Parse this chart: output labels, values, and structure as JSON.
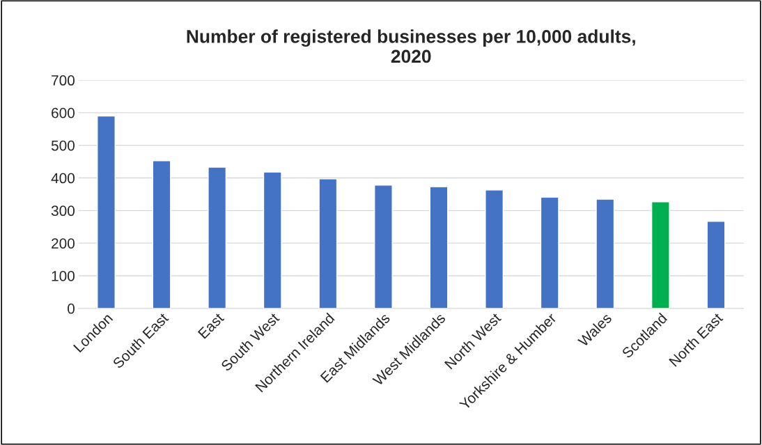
{
  "chart_data": {
    "type": "bar",
    "title": "Number of registered businesses per 10,000 adults,\n2020",
    "categories": [
      "London",
      "South East",
      "East",
      "South West",
      "Northern Ireland",
      "East Midlands",
      "West Midlands",
      "North West",
      "Yorkshire & Humber",
      "Wales",
      "Scotland",
      "North East"
    ],
    "values": [
      590,
      453,
      433,
      418,
      397,
      378,
      373,
      363,
      341,
      335,
      327,
      267
    ],
    "colors": [
      "#4472c4",
      "#4472c4",
      "#4472c4",
      "#4472c4",
      "#4472c4",
      "#4472c4",
      "#4472c4",
      "#4472c4",
      "#4472c4",
      "#4472c4",
      "#00b050",
      "#4472c4"
    ],
    "ylim": [
      0,
      700
    ],
    "yticks": [
      0,
      100,
      200,
      300,
      400,
      500,
      600,
      700
    ],
    "grid": "y",
    "legend": false
  }
}
